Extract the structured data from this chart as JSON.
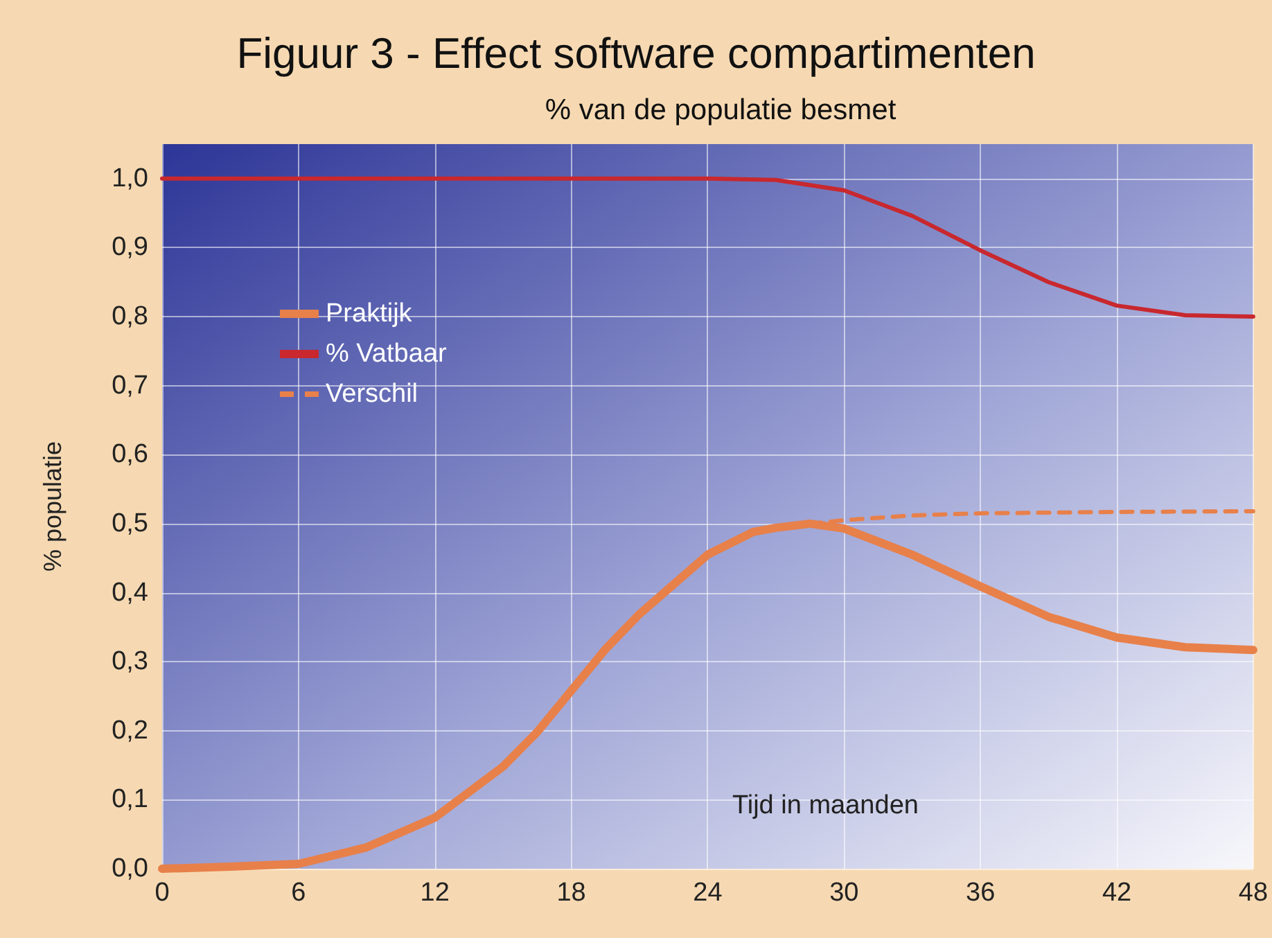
{
  "chart_data": {
    "type": "line",
    "title": "Figuur 3 - Effect software compartimenten",
    "subtitle": "% van de populatie besmet",
    "xlabel": "Tijd in maanden",
    "ylabel": "% populatie",
    "series": [
      {
        "name": "Praktijk",
        "color": "#e8804a",
        "line_style": "solid",
        "x": [
          0,
          3,
          6,
          9,
          12,
          15,
          16.5,
          18,
          19.5,
          21,
          24,
          26,
          27,
          28.5,
          30,
          33,
          36,
          39,
          42,
          45,
          48
        ],
        "values": [
          0.0,
          0.003,
          0.007,
          0.031,
          0.074,
          0.148,
          0.198,
          0.258,
          0.318,
          0.369,
          0.455,
          0.488,
          0.494,
          0.5,
          0.493,
          0.455,
          0.409,
          0.365,
          0.335,
          0.321,
          0.317
        ]
      },
      {
        "name": "% Vatbaar",
        "color": "#c8282e",
        "line_style": "solid",
        "x": [
          0,
          12,
          24,
          27,
          30,
          33,
          36,
          39,
          42,
          45,
          48
        ],
        "values": [
          1.0,
          1.0,
          1.0,
          0.998,
          0.983,
          0.946,
          0.896,
          0.85,
          0.816,
          0.802,
          0.8
        ]
      },
      {
        "name": "Verschil",
        "color": "#e8804a",
        "line_style": "dashed",
        "x": [
          28.5,
          30,
          33,
          36,
          42,
          48
        ],
        "values": [
          0.5,
          0.505,
          0.512,
          0.515,
          0.517,
          0.518
        ]
      }
    ],
    "xlim": [
      0,
      48
    ],
    "xticks": [
      0,
      6,
      12,
      18,
      24,
      30,
      36,
      42,
      48
    ],
    "ylim": [
      0,
      1.05
    ],
    "yticks": [
      {
        "value": 0,
        "label": "0,0"
      },
      {
        "value": 0.1,
        "label": "0,1"
      },
      {
        "value": 0.2,
        "label": "0,2"
      },
      {
        "value": 0.3,
        "label": "0,3"
      },
      {
        "value": 0.4,
        "label": "0,4"
      },
      {
        "value": 0.5,
        "label": "0,5"
      },
      {
        "value": 0.6,
        "label": "0,6"
      },
      {
        "value": 0.7,
        "label": "0,7"
      },
      {
        "value": 0.8,
        "label": "0,8"
      },
      {
        "value": 0.9,
        "label": "0,9"
      },
      {
        "value": 1.0,
        "label": "1,0"
      }
    ],
    "grid": true,
    "legend": "top left",
    "marker": "none"
  }
}
